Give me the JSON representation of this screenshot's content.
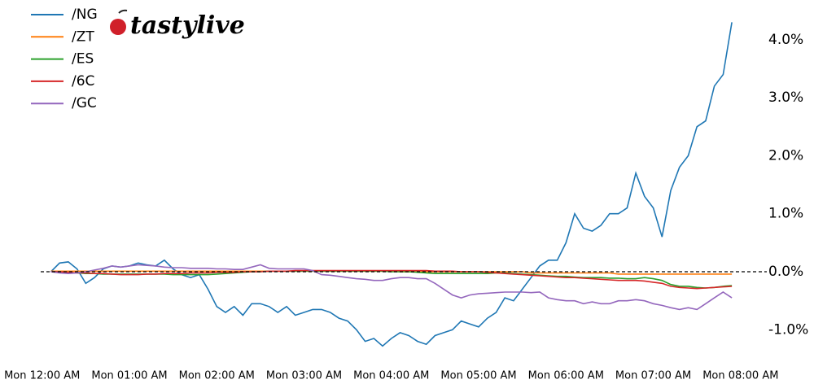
{
  "chart_data": {
    "type": "line",
    "logo": "tastylive",
    "x": [
      0.1,
      0.2,
      0.3,
      0.4,
      0.5,
      0.6,
      0.7,
      0.8,
      0.9,
      1.0,
      1.1,
      1.2,
      1.3,
      1.4,
      1.5,
      1.6,
      1.7,
      1.8,
      1.9,
      2.0,
      2.1,
      2.2,
      2.3,
      2.4,
      2.5,
      2.6,
      2.7,
      2.8,
      2.9,
      3.0,
      3.1,
      3.2,
      3.3,
      3.4,
      3.5,
      3.6,
      3.7,
      3.8,
      3.9,
      4.0,
      4.1,
      4.2,
      4.3,
      4.4,
      4.5,
      4.6,
      4.7,
      4.8,
      4.9,
      5.0,
      5.1,
      5.2,
      5.3,
      5.4,
      5.5,
      5.6,
      5.7,
      5.8,
      5.9,
      6.0,
      6.1,
      6.2,
      6.3,
      6.4,
      6.5,
      6.6,
      6.7,
      6.8,
      6.9,
      7.0,
      7.1,
      7.2,
      7.3,
      7.4,
      7.5,
      7.6,
      7.7,
      7.8,
      7.9
    ],
    "series": [
      {
        "name": "/NG",
        "color": "#1f77b4",
        "values": [
          0,
          0.15,
          0.17,
          0.05,
          -0.2,
          -0.1,
          0.05,
          0.1,
          0.08,
          0.1,
          0.15,
          0.12,
          0.1,
          0.2,
          0.05,
          -0.05,
          -0.1,
          -0.05,
          -0.3,
          -0.6,
          -0.7,
          -0.6,
          -0.75,
          -0.55,
          -0.55,
          -0.6,
          -0.7,
          -0.6,
          -0.75,
          -0.7,
          -0.65,
          -0.65,
          -0.7,
          -0.8,
          -0.85,
          -1.0,
          -1.2,
          -1.15,
          -1.28,
          -1.15,
          -1.05,
          -1.1,
          -1.2,
          -1.25,
          -1.1,
          -1.05,
          -1.0,
          -0.85,
          -0.9,
          -0.95,
          -0.8,
          -0.7,
          -0.45,
          -0.5,
          -0.3,
          -0.1,
          0.1,
          0.2,
          0.2,
          0.5,
          1.0,
          0.75,
          0.7,
          0.8,
          1.0,
          1.0,
          1.1,
          1.7,
          1.3,
          1.1,
          0.6,
          1.4,
          1.8,
          2.0,
          2.5,
          2.6,
          3.2,
          3.4,
          4.3
        ]
      },
      {
        "name": "/ZT",
        "color": "#ff7f0e",
        "values": [
          0.01,
          0.01,
          0.01,
          0.01,
          0.01,
          0.01,
          0.01,
          0.01,
          0.01,
          0.01,
          0.01,
          0.01,
          0.01,
          0.01,
          0.01,
          0.01,
          0.01,
          0.01,
          0.01,
          0.01,
          0.01,
          0.01,
          0.01,
          0.01,
          0.01,
          0.01,
          0.01,
          0.01,
          0.01,
          0.01,
          0.01,
          0.01,
          0.01,
          0.01,
          0.01,
          0.01,
          0.01,
          0.01,
          0.01,
          0.01,
          0,
          0,
          0,
          0,
          0,
          0,
          0,
          0,
          0,
          0,
          0,
          0,
          0,
          0,
          0,
          -0.02,
          -0.02,
          -0.02,
          -0.02,
          -0.02,
          -0.02,
          -0.02,
          -0.02,
          -0.02,
          -0.02,
          -0.04,
          -0.04,
          -0.04,
          -0.04,
          -0.04,
          -0.04,
          -0.04,
          -0.04,
          -0.04,
          -0.04,
          -0.04,
          -0.04,
          -0.04,
          -0.04
        ]
      },
      {
        "name": "/ES",
        "color": "#2ca02c",
        "values": [
          0,
          0,
          -0.01,
          -0.02,
          -0.03,
          -0.03,
          -0.04,
          -0.04,
          -0.04,
          -0.04,
          -0.04,
          -0.04,
          -0.04,
          -0.04,
          -0.05,
          -0.05,
          -0.05,
          -0.05,
          -0.05,
          -0.04,
          -0.03,
          -0.02,
          -0.01,
          0,
          0,
          0.01,
          0.01,
          0.01,
          0.01,
          0.01,
          0.01,
          0.01,
          0.01,
          0.01,
          0.01,
          0.01,
          0.01,
          0.01,
          0.01,
          0,
          0,
          0,
          -0.01,
          -0.02,
          -0.03,
          -0.03,
          -0.03,
          -0.03,
          -0.03,
          -0.03,
          -0.03,
          -0.02,
          -0.02,
          -0.03,
          -0.04,
          -0.05,
          -0.06,
          -0.07,
          -0.08,
          -0.08,
          -0.09,
          -0.1,
          -0.1,
          -0.1,
          -0.11,
          -0.11,
          -0.12,
          -0.12,
          -0.1,
          -0.12,
          -0.15,
          -0.22,
          -0.25,
          -0.25,
          -0.27,
          -0.28,
          -0.27,
          -0.25,
          -0.24
        ]
      },
      {
        "name": "/6C",
        "color": "#d62728",
        "values": [
          0,
          0,
          -0.01,
          -0.02,
          -0.02,
          -0.03,
          -0.03,
          -0.04,
          -0.05,
          -0.05,
          -0.05,
          -0.04,
          -0.04,
          -0.03,
          -0.03,
          -0.03,
          -0.02,
          -0.02,
          -0.02,
          -0.01,
          -0.01,
          -0.01,
          0,
          0,
          0,
          0.01,
          0.01,
          0.01,
          0.02,
          0.02,
          0.02,
          0.02,
          0.02,
          0.02,
          0.02,
          0.02,
          0.02,
          0.02,
          0.02,
          0.02,
          0.02,
          0.02,
          0.02,
          0.02,
          0.01,
          0.01,
          0.01,
          0,
          0,
          0,
          -0.01,
          -0.02,
          -0.03,
          -0.04,
          -0.05,
          -0.06,
          -0.07,
          -0.08,
          -0.09,
          -0.1,
          -0.1,
          -0.11,
          -0.12,
          -0.13,
          -0.14,
          -0.15,
          -0.15,
          -0.15,
          -0.16,
          -0.18,
          -0.2,
          -0.25,
          -0.27,
          -0.28,
          -0.29,
          -0.28,
          -0.27,
          -0.26,
          -0.25
        ]
      },
      {
        "name": "/GC",
        "color": "#9467bd",
        "values": [
          0,
          -0.02,
          -0.03,
          -0.02,
          0,
          0.03,
          0.06,
          0.1,
          0.08,
          0.1,
          0.12,
          0.11,
          0.1,
          0.08,
          0.07,
          0.07,
          0.06,
          0.06,
          0.06,
          0.05,
          0.05,
          0.04,
          0.04,
          0.08,
          0.12,
          0.06,
          0.05,
          0.05,
          0.05,
          0.05,
          0.02,
          -0.05,
          -0.06,
          -0.08,
          -0.1,
          -0.12,
          -0.13,
          -0.15,
          -0.15,
          -0.12,
          -0.1,
          -0.1,
          -0.12,
          -0.12,
          -0.2,
          -0.3,
          -0.4,
          -0.45,
          -0.4,
          -0.38,
          -0.37,
          -0.36,
          -0.35,
          -0.35,
          -0.35,
          -0.36,
          -0.35,
          -0.45,
          -0.48,
          -0.5,
          -0.5,
          -0.55,
          -0.52,
          -0.55,
          -0.55,
          -0.5,
          -0.5,
          -0.48,
          -0.5,
          -0.55,
          -0.58,
          -0.62,
          -0.65,
          -0.62,
          -0.65,
          -0.55,
          -0.45,
          -0.35,
          -0.45
        ]
      }
    ],
    "xlim": [
      -0.1,
      8.3
    ],
    "xticks": [
      {
        "value": 0,
        "label": "Mon 12:00 AM"
      },
      {
        "value": 1,
        "label": "Mon 01:00 AM"
      },
      {
        "value": 2,
        "label": "Mon 02:00 AM"
      },
      {
        "value": 3,
        "label": "Mon 03:00 AM"
      },
      {
        "value": 4,
        "label": "Mon 04:00 AM"
      },
      {
        "value": 5,
        "label": "Mon 05:00 AM"
      },
      {
        "value": 6,
        "label": "Mon 06:00 AM"
      },
      {
        "value": 7,
        "label": "Mon 07:00 AM"
      },
      {
        "value": 8,
        "label": "Mon 08:00 AM"
      }
    ],
    "ylim": [
      -1.5,
      4.6
    ],
    "yticks": [
      {
        "value": -1,
        "label": "-1.0%"
      },
      {
        "value": 0,
        "label": "0.0%"
      },
      {
        "value": 1,
        "label": "1.0%"
      },
      {
        "value": 2,
        "label": "2.0%"
      },
      {
        "value": 3,
        "label": "3.0%"
      },
      {
        "value": 4,
        "label": "4.0%"
      }
    ],
    "hline": 0,
    "grid": false,
    "legend": "upper left"
  }
}
